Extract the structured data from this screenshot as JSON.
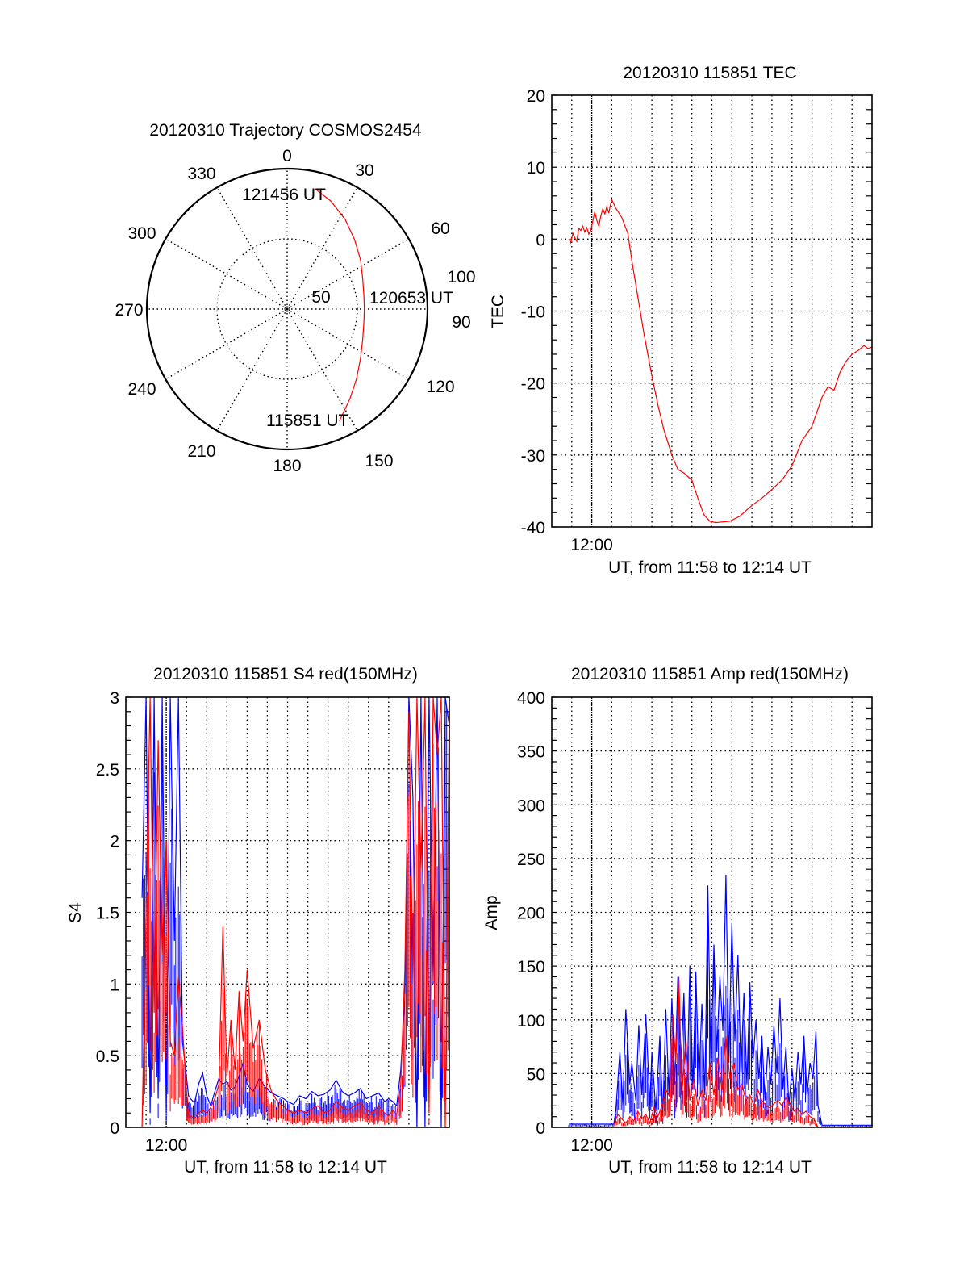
{
  "figure": {
    "colors": {
      "red": "#ff0000",
      "blue": "#0000ff",
      "axis": "#000000"
    }
  },
  "chart_data": [
    {
      "id": "trajectory",
      "type": "polar-line",
      "title": "20120310 Trajectory COSMOS2454",
      "angle_ticks": [
        "0",
        "30",
        "60",
        "90",
        "120",
        "150",
        "180",
        "210",
        "240",
        "270",
        "300",
        "330"
      ],
      "angle_values": [
        0,
        30,
        60,
        90,
        120,
        150,
        180,
        210,
        240,
        270,
        300,
        330
      ],
      "radial_ticks": [
        {
          "value": 50,
          "label": "50"
        },
        {
          "value": 100,
          "label": "100"
        }
      ],
      "rlim": [
        0,
        100
      ],
      "annotations": [
        {
          "text": "115851 UT",
          "az": 155,
          "r": 88
        },
        {
          "text": "120653 UT",
          "az": 90,
          "r": 55
        },
        {
          "text": "121456 UT",
          "az": 13,
          "r": 88
        }
      ],
      "series": [
        {
          "name": "trajectory",
          "color": "red",
          "az": [
            155,
            145,
            135,
            124,
            112,
            100,
            90,
            80,
            68,
            56,
            44,
            33,
            22,
            13
          ],
          "r": [
            88,
            78,
            70,
            63,
            58,
            55.5,
            55,
            55.5,
            58,
            63,
            69,
            76,
            83,
            88
          ]
        }
      ]
    },
    {
      "id": "tec",
      "type": "line",
      "title": "20120310 115851 TEC",
      "xlabel": "UT, from 11:58 to 12:14 UT",
      "ylabel": "TEC",
      "xlim": [
        0,
        16
      ],
      "x_unit": "minutes after 11:58",
      "ylim": [
        -40,
        20
      ],
      "yticks": [
        -40,
        -30,
        -20,
        -10,
        0,
        10,
        20
      ],
      "xtick_labels": [
        {
          "x": 2,
          "label": "12:00"
        }
      ],
      "grid": true,
      "series": [
        {
          "name": "TEC",
          "color": "red",
          "x": [
            0.85,
            0.95,
            1.05,
            1.15,
            1.25,
            1.35,
            1.45,
            1.55,
            1.65,
            1.75,
            1.85,
            1.95,
            2.05,
            2.15,
            2.25,
            2.35,
            2.45,
            2.55,
            2.65,
            2.75,
            2.85,
            2.95,
            3.0,
            3.2,
            3.5,
            3.8,
            4.0,
            4.3,
            4.6,
            5.0,
            5.3,
            5.6,
            6.0,
            6.3,
            6.6,
            7.0,
            7.3,
            7.6,
            7.9,
            8.2,
            8.5,
            8.9,
            9.4,
            10.0,
            10.5,
            11.0,
            11.5,
            12.0,
            12.5,
            13.0,
            13.5,
            13.8,
            14.1,
            14.4,
            14.7,
            15.0,
            15.3,
            15.6,
            15.8,
            16.0
          ],
          "y": [
            0,
            -0.5,
            0.8,
            0.2,
            -0.3,
            1.5,
            1.2,
            1.8,
            1.0,
            1.6,
            0.7,
            1.2,
            2.5,
            3.8,
            2.6,
            1.8,
            3.2,
            4.2,
            3.5,
            4.5,
            3.6,
            5.0,
            5.5,
            4.3,
            3.0,
            0.8,
            -3.0,
            -8.0,
            -13.0,
            -19.0,
            -23.0,
            -26.5,
            -30.0,
            -32.0,
            -32.5,
            -33.5,
            -36.0,
            -38.3,
            -39.2,
            -39.4,
            -39.3,
            -39.2,
            -38.5,
            -37.0,
            -36.0,
            -34.8,
            -33.5,
            -31.5,
            -28.0,
            -26.0,
            -22.0,
            -20.5,
            -21.0,
            -18.5,
            -17.0,
            -16.0,
            -15.5,
            -14.8,
            -15.2,
            -15.0
          ]
        }
      ]
    },
    {
      "id": "s4",
      "type": "line",
      "title": "20120310 115851 S4 red(150MHz)",
      "xlabel": "UT, from 11:58 to 12:14 UT",
      "ylabel": "S4",
      "xlim": [
        0,
        16
      ],
      "x_unit": "minutes after 11:58",
      "ylim": [
        0,
        3
      ],
      "yticks": [
        0,
        0.5,
        1,
        1.5,
        2,
        2.5,
        3
      ],
      "ytick_labels": [
        "0",
        "0.5",
        "1",
        "1.5",
        "2",
        "2.5",
        "3"
      ],
      "xtick_labels": [
        {
          "x": 2,
          "label": "12:00"
        }
      ],
      "grid": true,
      "series": [
        {
          "name": "S4 blue",
          "color": "blue",
          "x": [
            0.8,
            1.0,
            1.2,
            1.4,
            1.6,
            1.8,
            2.0,
            2.2,
            2.4,
            2.6,
            2.8,
            3.0,
            3.1,
            3.2,
            3.4,
            3.6,
            3.8,
            4.0,
            4.2,
            4.4,
            4.6,
            4.8,
            5.0,
            5.2,
            5.4,
            5.6,
            5.8,
            6.0,
            6.3,
            6.6,
            6.9,
            7.2,
            7.5,
            7.8,
            8.0,
            8.3,
            8.6,
            8.9,
            9.2,
            9.5,
            9.8,
            10.1,
            10.4,
            10.7,
            11.0,
            11.3,
            11.6,
            11.9,
            12.2,
            12.5,
            12.8,
            13.0,
            13.2,
            13.4,
            13.6,
            13.8,
            14.0,
            14.2,
            14.4,
            14.6,
            14.8,
            15.0,
            15.2,
            15.4,
            15.6,
            15.8,
            16.0
          ],
          "y": [
            1.6,
            3.0,
            0.1,
            3.0,
            0.2,
            3.0,
            0.1,
            3.0,
            1.3,
            3.0,
            0.6,
            0.35,
            0.22,
            0.2,
            0.17,
            0.3,
            0.38,
            0.22,
            0.15,
            0.25,
            0.34,
            0.3,
            0.32,
            0.26,
            0.28,
            0.36,
            0.45,
            0.3,
            0.25,
            0.34,
            0.28,
            0.24,
            0.22,
            0.2,
            0.18,
            0.16,
            0.22,
            0.2,
            0.25,
            0.22,
            0.23,
            0.26,
            0.33,
            0.25,
            0.22,
            0.24,
            0.27,
            0.2,
            0.22,
            0.24,
            0.18,
            0.2,
            0.18,
            0.15,
            0.4,
            0.9,
            3.0,
            2.3,
            0.0,
            3.0,
            0.0,
            3.0,
            1.0,
            3.0,
            0.0,
            3.0,
            2.8
          ]
        },
        {
          "name": "S4 red",
          "color": "red",
          "x": [
            0.8,
            1.0,
            1.2,
            1.4,
            1.6,
            1.8,
            2.0,
            2.2,
            2.4,
            2.6,
            2.8,
            3.0,
            3.1,
            3.2,
            3.4,
            3.6,
            3.8,
            4.0,
            4.2,
            4.4,
            4.6,
            4.8,
            5.0,
            5.2,
            5.4,
            5.6,
            5.8,
            6.0,
            6.3,
            6.6,
            6.9,
            7.2,
            7.5,
            7.8,
            8.0,
            8.3,
            8.6,
            8.9,
            9.2,
            9.5,
            9.8,
            10.1,
            10.4,
            10.7,
            11.0,
            11.3,
            11.6,
            11.9,
            12.2,
            12.5,
            12.8,
            13.0,
            13.2,
            13.4,
            13.6,
            13.8,
            14.0,
            14.2,
            14.4,
            14.6,
            14.8,
            15.0,
            15.2,
            15.4,
            15.6,
            15.8,
            16.0
          ],
          "y": [
            0.0,
            1.5,
            3.0,
            0.8,
            2.7,
            1.2,
            2.0,
            0.6,
            0.5,
            1.05,
            0.7,
            0.25,
            0.12,
            0.08,
            0.06,
            0.1,
            0.12,
            0.1,
            0.14,
            0.2,
            0.3,
            1.4,
            0.35,
            0.75,
            0.4,
            0.95,
            0.6,
            1.1,
            0.55,
            0.75,
            0.4,
            0.25,
            0.18,
            0.15,
            0.12,
            0.1,
            0.12,
            0.1,
            0.13,
            0.15,
            0.1,
            0.12,
            0.18,
            0.14,
            0.12,
            0.15,
            0.17,
            0.12,
            0.1,
            0.15,
            0.1,
            0.08,
            0.12,
            0.09,
            0.3,
            1.1,
            2.9,
            1.0,
            3.0,
            1.8,
            3.0,
            0.1,
            3.0,
            2.6,
            3.0,
            0.0,
            3.0
          ]
        }
      ]
    },
    {
      "id": "amp",
      "type": "line",
      "title": "20120310 115851 Amp red(150MHz)",
      "xlabel": "UT, from 11:58 to 12:14 UT",
      "ylabel": "Amp",
      "xlim": [
        0,
        16
      ],
      "x_unit": "minutes after 11:58",
      "ylim": [
        0,
        400
      ],
      "yticks": [
        0,
        50,
        100,
        150,
        200,
        250,
        300,
        350,
        400
      ],
      "xtick_labels": [
        {
          "x": 2,
          "label": "12:00"
        }
      ],
      "grid": true,
      "series": [
        {
          "name": "Amp blue",
          "color": "blue",
          "x": [
            0.85,
            1.5,
            2.5,
            3.1,
            3.2,
            3.4,
            3.55,
            3.7,
            3.9,
            4.0,
            4.2,
            4.35,
            4.5,
            4.7,
            4.9,
            5.0,
            5.2,
            5.4,
            5.55,
            5.7,
            5.85,
            6.0,
            6.15,
            6.3,
            6.45,
            6.6,
            6.75,
            6.9,
            7.05,
            7.2,
            7.35,
            7.5,
            7.65,
            7.8,
            7.95,
            8.1,
            8.25,
            8.4,
            8.55,
            8.7,
            8.85,
            9.0,
            9.15,
            9.3,
            9.45,
            9.6,
            9.75,
            9.9,
            10.05,
            10.2,
            10.35,
            10.5,
            10.65,
            10.8,
            10.95,
            11.1,
            11.25,
            11.4,
            11.55,
            11.7,
            11.85,
            12.0,
            12.15,
            12.3,
            12.45,
            12.6,
            12.75,
            12.9,
            13.05,
            13.2,
            13.3,
            13.5,
            14.5,
            16.0
          ],
          "y": [
            3,
            3,
            3,
            3,
            15,
            70,
            20,
            110,
            40,
            60,
            25,
            95,
            30,
            105,
            20,
            70,
            15,
            85,
            10,
            110,
            30,
            120,
            40,
            140,
            50,
            125,
            25,
            150,
            35,
            145,
            40,
            115,
            30,
            225,
            50,
            170,
            70,
            140,
            90,
            235,
            60,
            190,
            80,
            160,
            50,
            125,
            40,
            135,
            60,
            100,
            45,
            85,
            25,
            75,
            40,
            95,
            50,
            120,
            35,
            75,
            20,
            55,
            25,
            70,
            40,
            85,
            30,
            60,
            45,
            90,
            20,
            2,
            2,
            2
          ]
        },
        {
          "name": "Amp red",
          "color": "red",
          "x": [
            3.1,
            3.3,
            3.5,
            3.7,
            3.9,
            4.1,
            4.3,
            4.5,
            4.7,
            4.9,
            5.1,
            5.3,
            5.5,
            5.7,
            5.9,
            6.05,
            6.2,
            6.35,
            6.5,
            6.7,
            6.9,
            7.1,
            7.3,
            7.5,
            7.7,
            7.9,
            8.1,
            8.3,
            8.5,
            8.7,
            8.9,
            9.1,
            9.3,
            9.5,
            9.7,
            9.9,
            10.1,
            10.3,
            10.5,
            10.7,
            10.9,
            11.1,
            11.3,
            11.5,
            11.7,
            11.9,
            12.1,
            12.3,
            12.5,
            12.7,
            12.9,
            13.1,
            13.3
          ],
          "y": [
            2,
            12,
            8,
            4,
            10,
            6,
            15,
            8,
            12,
            4,
            18,
            10,
            20,
            35,
            28,
            105,
            60,
            140,
            30,
            80,
            25,
            45,
            20,
            35,
            25,
            60,
            30,
            65,
            35,
            85,
            45,
            60,
            35,
            40,
            25,
            30,
            20,
            35,
            25,
            20,
            18,
            22,
            25,
            20,
            28,
            22,
            15,
            18,
            12,
            15,
            10,
            8,
            0
          ]
        }
      ]
    }
  ]
}
